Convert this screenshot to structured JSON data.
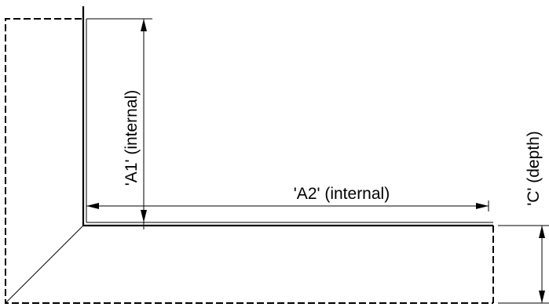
{
  "labels": {
    "a1": "'A1' (internal)",
    "a2": "'A2' (internal)",
    "c": "'C' (depth)"
  },
  "colors": {
    "line": "#000000",
    "background": "#ffffff"
  }
}
